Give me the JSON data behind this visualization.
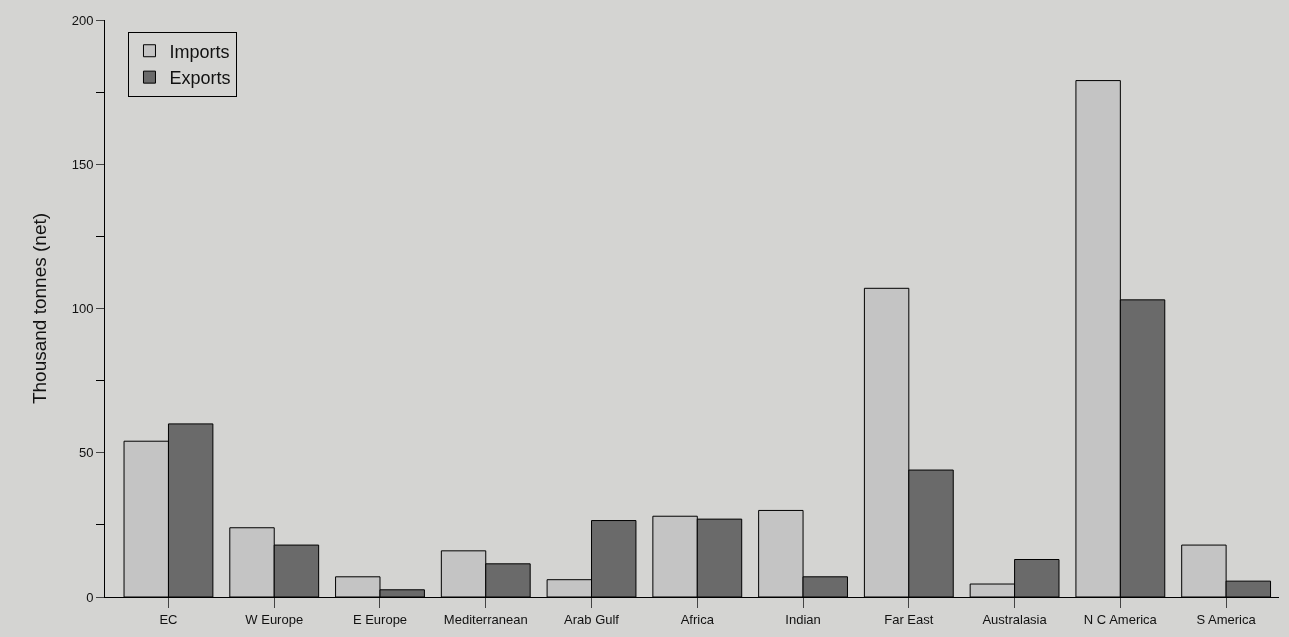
{
  "chart_data": {
    "type": "bar",
    "ylabel": "Thousand tonnes (net)",
    "categories": [
      "EC",
      "W Europe",
      "E Europe",
      "Mediterranean",
      "Arab Gulf",
      "Africa",
      "Indian",
      "Far East",
      "Australasia",
      "N C America",
      "S America"
    ],
    "series": [
      {
        "name": "Imports",
        "color": "#c4c4c4",
        "values": [
          54,
          24,
          7,
          16,
          6,
          28,
          30,
          107,
          4.5,
          179,
          18
        ]
      },
      {
        "name": "Exports",
        "color": "#6a6a6a",
        "values": [
          60,
          18,
          2.5,
          11.5,
          26.5,
          27,
          7,
          44,
          13,
          103,
          5.5
        ]
      }
    ],
    "ylim": [
      0,
      200
    ],
    "yticks": [
      0,
      50,
      100,
      150,
      200
    ],
    "grid": false,
    "legend": "top left"
  }
}
